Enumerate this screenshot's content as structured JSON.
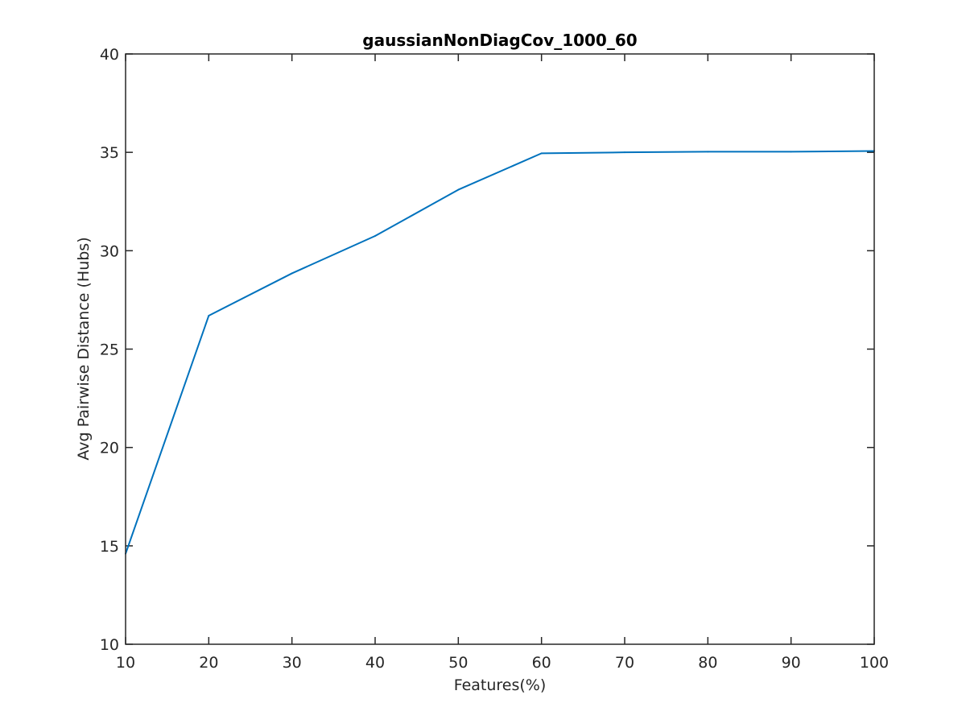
{
  "chart_data": {
    "type": "line",
    "title": "gaussianNonDiagCov_1000_60",
    "xlabel": "Features(%)",
    "ylabel": "Avg Pairwise Distance (Hubs)",
    "xlim": [
      10,
      100
    ],
    "ylim": [
      10,
      40
    ],
    "xticks": [
      10,
      20,
      30,
      40,
      50,
      60,
      70,
      80,
      90,
      100
    ],
    "yticks": [
      10,
      15,
      20,
      25,
      30,
      35,
      40
    ],
    "grid": false,
    "legend": "none",
    "series": [
      {
        "color": "#0072bd",
        "x": [
          10,
          20,
          30,
          40,
          50,
          60,
          70,
          80,
          90,
          100
        ],
        "values": [
          14.6,
          26.7,
          28.85,
          30.75,
          33.1,
          34.95,
          35.0,
          35.03,
          35.03,
          35.07
        ]
      }
    ]
  }
}
